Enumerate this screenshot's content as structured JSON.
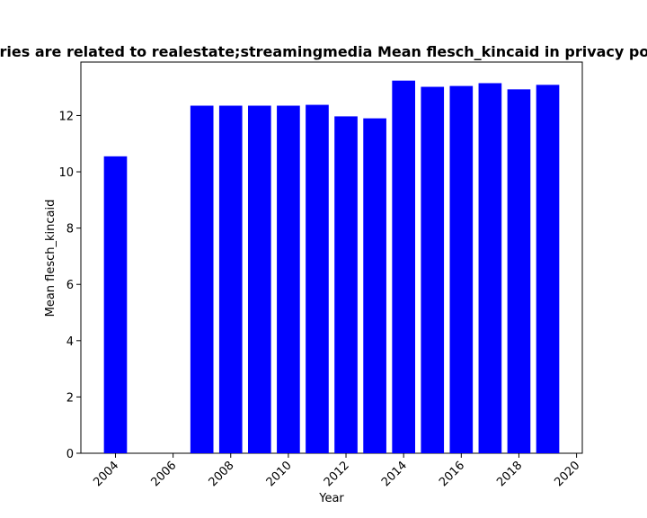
{
  "chart_data": {
    "type": "bar",
    "title": "Stories are related to realestate;streamingmedia Mean flesch_kincaid in privacy policies",
    "xlabel": "Year",
    "ylabel": "Mean flesch_kincaid",
    "x": [
      2004,
      2007,
      2008,
      2009,
      2010,
      2011,
      2012,
      2013,
      2014,
      2015,
      2016,
      2017,
      2018,
      2019
    ],
    "values": [
      10.55,
      12.35,
      12.35,
      12.35,
      12.35,
      12.38,
      11.97,
      11.9,
      13.24,
      13.02,
      13.05,
      13.15,
      12.93,
      13.09
    ],
    "xlim": [
      2002.8,
      2020.2
    ],
    "ylim": [
      0,
      13.9
    ],
    "xticks": [
      2004,
      2006,
      2008,
      2010,
      2012,
      2014,
      2016,
      2018,
      2020
    ],
    "yticks": [
      0,
      2,
      4,
      6,
      8,
      10,
      12
    ],
    "bar_color": "#0000ff",
    "grid": false,
    "legend": "none"
  }
}
